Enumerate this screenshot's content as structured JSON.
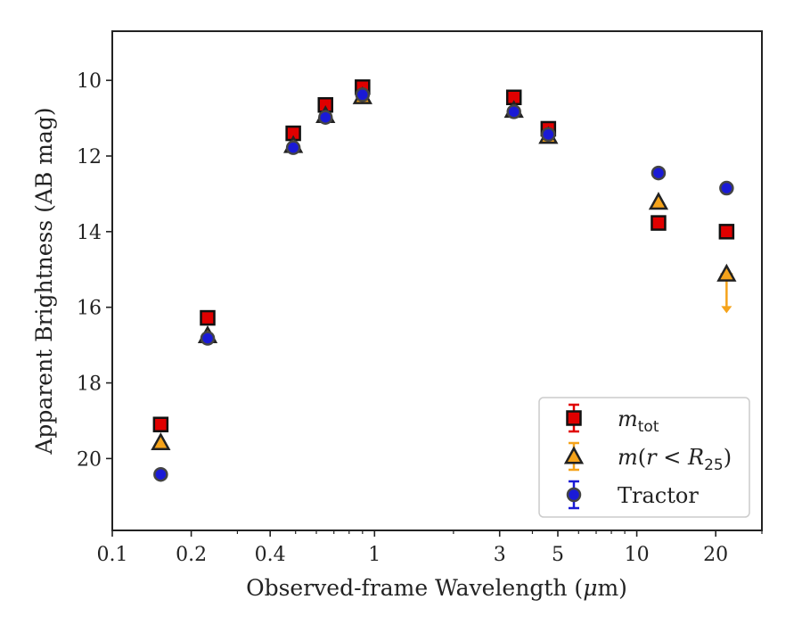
{
  "chart_data": {
    "type": "scatter",
    "xlabel": "Observed-frame Wavelength (μm)",
    "ylabel": "Apparent Brightness (AB mag)",
    "x_scale": "log",
    "xlim": [
      0.1,
      30
    ],
    "ylim": [
      21.9,
      8.7
    ],
    "y_inverted": true,
    "x_ticks": [
      {
        "value": 0.1,
        "label": "0.1"
      },
      {
        "value": 0.2,
        "label": "0.2"
      },
      {
        "value": 0.4,
        "label": "0.4"
      },
      {
        "value": 1,
        "label": "1"
      },
      {
        "value": 3,
        "label": "3"
      },
      {
        "value": 5,
        "label": "5"
      },
      {
        "value": 10,
        "label": "10"
      },
      {
        "value": 20,
        "label": "20"
      }
    ],
    "y_ticks": [
      {
        "value": 10,
        "label": "10"
      },
      {
        "value": 12,
        "label": "12"
      },
      {
        "value": 14,
        "label": "14"
      },
      {
        "value": 16,
        "label": "16"
      },
      {
        "value": 18,
        "label": "18"
      },
      {
        "value": 20,
        "label": "20"
      }
    ],
    "grid": false,
    "legend_position": "lower-right",
    "series": [
      {
        "name": "m_tot",
        "marker": "square",
        "color": "#e00000",
        "errcolor": "#e00000",
        "points": [
          {
            "x": 0.153,
            "y": 19.1
          },
          {
            "x": 0.231,
            "y": 16.28
          },
          {
            "x": 0.49,
            "y": 11.4
          },
          {
            "x": 0.65,
            "y": 10.65
          },
          {
            "x": 0.9,
            "y": 10.18
          },
          {
            "x": 3.4,
            "y": 10.45
          },
          {
            "x": 4.6,
            "y": 11.28
          },
          {
            "x": 12.1,
            "y": 13.77
          },
          {
            "x": 22.0,
            "y": 14.0
          }
        ]
      },
      {
        "name": "m(r<R25)",
        "marker": "triangle",
        "color": "#f5a31a",
        "errcolor": "#f5a31a",
        "points": [
          {
            "x": 0.153,
            "y": 19.58
          },
          {
            "x": 0.231,
            "y": 16.75
          },
          {
            "x": 0.49,
            "y": 11.72
          },
          {
            "x": 0.65,
            "y": 10.93
          },
          {
            "x": 0.9,
            "y": 10.43
          },
          {
            "x": 3.4,
            "y": 10.79
          },
          {
            "x": 4.6,
            "y": 11.48
          },
          {
            "x": 12.1,
            "y": 13.22
          },
          {
            "x": 22.0,
            "y": 15.12,
            "upper_limit": true
          }
        ]
      },
      {
        "name": "Tractor",
        "marker": "circle",
        "color": "#1a1ad6",
        "errcolor": "#1a1ad6",
        "points": [
          {
            "x": 0.153,
            "y": 20.42
          },
          {
            "x": 0.231,
            "y": 16.82
          },
          {
            "x": 0.49,
            "y": 11.78
          },
          {
            "x": 0.65,
            "y": 10.98
          },
          {
            "x": 0.9,
            "y": 10.38
          },
          {
            "x": 3.4,
            "y": 10.83
          },
          {
            "x": 4.6,
            "y": 11.43
          },
          {
            "x": 12.1,
            "y": 12.45
          },
          {
            "x": 22.0,
            "y": 12.85
          }
        ]
      }
    ]
  }
}
